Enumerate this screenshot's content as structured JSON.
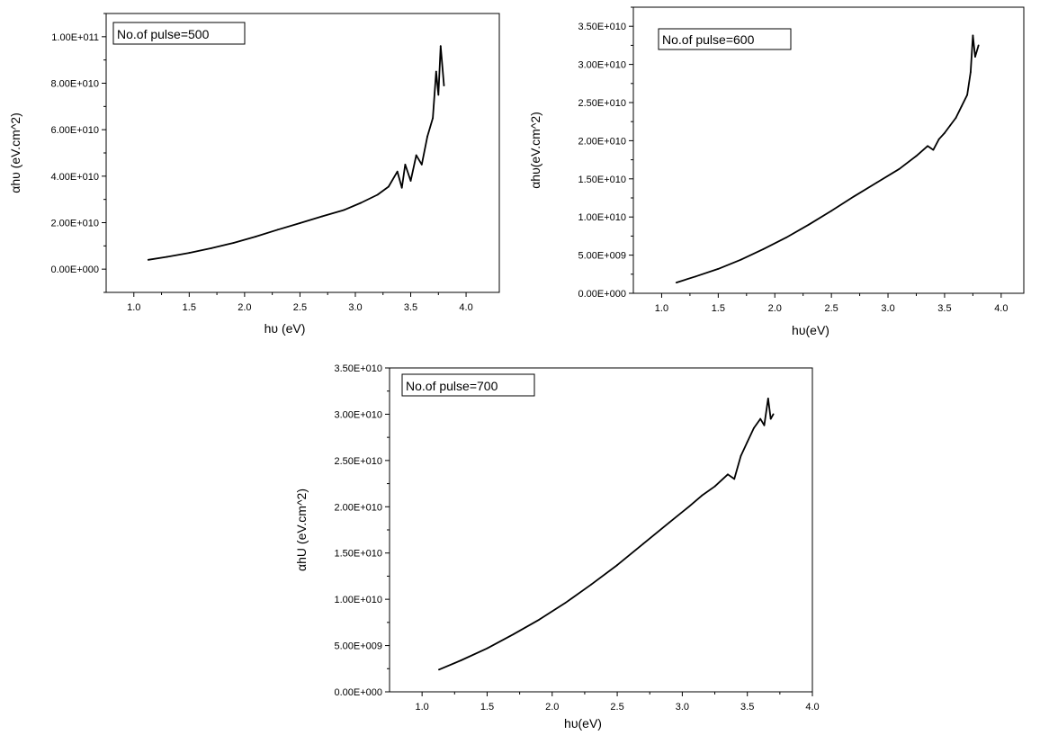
{
  "chart_data": [
    {
      "type": "line",
      "annotation": "No.of pulse=500",
      "xlabel": "hυ (eV)",
      "ylabel": "αhυ (eV.cm^2)",
      "xlim": [
        0.75,
        4.3
      ],
      "ylim": [
        -10000000000.0,
        110000000000.0
      ],
      "x_ticks": [
        "1.0",
        "1.5",
        "2.0",
        "2.5",
        "3.0",
        "3.5",
        "4.0"
      ],
      "y_ticks": [
        "0.00E+000",
        "2.00E+010",
        "4.00E+010",
        "6.00E+010",
        "8.00E+010",
        "1.00E+011"
      ],
      "x_tick_values": [
        1.0,
        1.5,
        2.0,
        2.5,
        3.0,
        3.5,
        4.0
      ],
      "y_tick_values": [
        0,
        20000000000.0,
        40000000000.0,
        60000000000.0,
        80000000000.0,
        100000000000.0
      ],
      "series": [
        {
          "x": [
            1.13,
            1.3,
            1.5,
            1.7,
            1.9,
            2.1,
            2.3,
            2.5,
            2.7,
            2.9,
            3.05,
            3.2,
            3.3,
            3.38,
            3.42,
            3.45,
            3.5,
            3.55,
            3.6,
            3.65,
            3.7,
            3.73,
            3.75,
            3.77,
            3.8
          ],
          "y": [
            4000000000.0,
            5300000000.0,
            7000000000.0,
            9000000000.0,
            11300000000.0,
            14000000000.0,
            17000000000.0,
            19800000000.0,
            22700000000.0,
            25500000000.0,
            28500000000.0,
            32000000000.0,
            35500000000.0,
            42000000000.0,
            35000000000.0,
            45000000000.0,
            38000000000.0,
            49000000000.0,
            45000000000.0,
            57000000000.0,
            65000000000.0,
            85000000000.0,
            75000000000.0,
            96000000000.0,
            79000000000.0
          ]
        }
      ]
    },
    {
      "type": "line",
      "annotation": "No.of pulse=600",
      "xlabel": "hυ(eV)",
      "ylabel": "αhυ(eV.cm^2)",
      "xlim": [
        0.75,
        4.2
      ],
      "ylim": [
        0,
        37500000000.0
      ],
      "x_ticks": [
        "1.0",
        "1.5",
        "2.0",
        "2.5",
        "3.0",
        "3.5",
        "4.0"
      ],
      "y_ticks": [
        "0.00E+000",
        "5.00E+009",
        "1.00E+010",
        "1.50E+010",
        "2.00E+010",
        "2.50E+010",
        "3.00E+010",
        "3.50E+010"
      ],
      "x_tick_values": [
        1.0,
        1.5,
        2.0,
        2.5,
        3.0,
        3.5,
        4.0
      ],
      "y_tick_values": [
        0,
        5000000000.0,
        10000000000.0,
        15000000000.0,
        20000000000.0,
        25000000000.0,
        30000000000.0,
        35000000000.0
      ],
      "series": [
        {
          "x": [
            1.13,
            1.3,
            1.5,
            1.7,
            1.9,
            2.1,
            2.3,
            2.5,
            2.7,
            2.9,
            3.1,
            3.25,
            3.35,
            3.4,
            3.45,
            3.5,
            3.55,
            3.6,
            3.65,
            3.7,
            3.73,
            3.75,
            3.77,
            3.8
          ],
          "y": [
            1400000000.0,
            2200000000.0,
            3200000000.0,
            4400000000.0,
            5800000000.0,
            7300000000.0,
            9000000000.0,
            10800000000.0,
            12700000000.0,
            14500000000.0,
            16300000000.0,
            18000000000.0,
            19300000000.0,
            18800000000.0,
            20200000000.0,
            21000000000.0,
            22000000000.0,
            23000000000.0,
            24500000000.0,
            26000000000.0,
            29000000000.0,
            33800000000.0,
            31000000000.0,
            32500000000.0
          ]
        }
      ]
    },
    {
      "type": "line",
      "annotation": "No.of pulse=700",
      "xlabel": "hυ(eV)",
      "ylabel": "αhU (eV.cm^2)",
      "xlim": [
        0.75,
        4.0
      ],
      "ylim": [
        0,
        35000000000.0
      ],
      "x_ticks": [
        "1.0",
        "1.5",
        "2.0",
        "2.5",
        "3.0",
        "3.5",
        "4.0"
      ],
      "y_ticks": [
        "0.00E+000",
        "5.00E+009",
        "1.00E+010",
        "1.50E+010",
        "2.00E+010",
        "2.50E+010",
        "3.00E+010",
        "3.50E+010"
      ],
      "x_tick_values": [
        1.0,
        1.5,
        2.0,
        2.5,
        3.0,
        3.5,
        4.0
      ],
      "y_tick_values": [
        0,
        5000000000.0,
        10000000000.0,
        15000000000.0,
        20000000000.0,
        25000000000.0,
        30000000000.0,
        35000000000.0
      ],
      "series": [
        {
          "x": [
            1.13,
            1.3,
            1.5,
            1.7,
            1.9,
            2.1,
            2.3,
            2.5,
            2.7,
            2.9,
            3.05,
            3.15,
            3.25,
            3.35,
            3.4,
            3.45,
            3.5,
            3.55,
            3.6,
            3.63,
            3.66,
            3.68,
            3.7
          ],
          "y": [
            2400000000.0,
            3400000000.0,
            4700000000.0,
            6200000000.0,
            7800000000.0,
            9600000000.0,
            11600000000.0,
            13700000000.0,
            16000000000.0,
            18300000000.0,
            20000000000.0,
            21200000000.0,
            22200000000.0,
            23500000000.0,
            23000000000.0,
            25500000000.0,
            27000000000.0,
            28500000000.0,
            29500000000.0,
            28800000000.0,
            31700000000.0,
            29500000000.0,
            30000000000.0
          ]
        }
      ]
    }
  ]
}
